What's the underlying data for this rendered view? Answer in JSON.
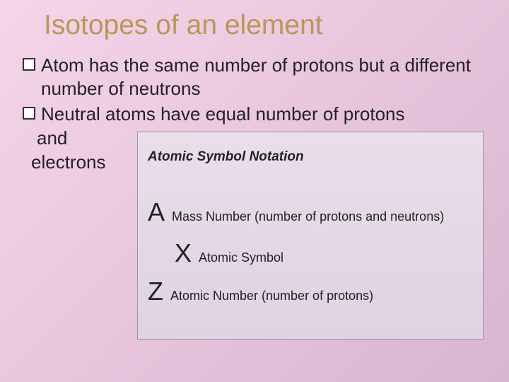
{
  "title": "Isotopes of an element",
  "bullets": {
    "b1": "Atom has the same number of protons but a different number of neutrons",
    "b2": "Neutral atoms have equal number of protons",
    "b2_and": "and",
    "b2_elec": "electrons"
  },
  "notation": {
    "heading": "Atomic Symbol Notation",
    "a_letter": "A",
    "a_desc": "Mass Number  (number of protons and neutrons)",
    "x_letter": "X",
    "x_desc": "Atomic Symbol",
    "z_letter": "Z",
    "z_desc": "Atomic Number  (number of protons)"
  },
  "colors": {
    "title_color": "#b89858",
    "text_color": "#222222",
    "bg_start": "#f5d5e8",
    "bg_end": "#d8b5d0",
    "box_bg_start": "#e8dfe9",
    "box_bg_end": "#ded3e1",
    "box_border": "#999999"
  },
  "typography": {
    "title_fontsize": 39,
    "body_fontsize": 26,
    "notation_heading_fontsize": 19,
    "notation_letter_fontsize": 36,
    "notation_desc_fontsize": 18
  }
}
